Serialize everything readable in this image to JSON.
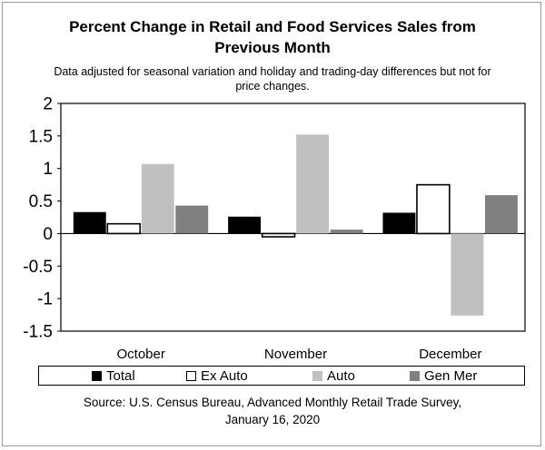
{
  "title_line1": "Percent Change in Retail and Food Services Sales from",
  "title_line2": "Previous Month",
  "subtitle_line1": "Data adjusted for seasonal variation and holiday and trading-day differences but not for",
  "subtitle_line2": "price changes.",
  "source_line1": "Source: U.S. Census Bureau, Advanced Monthly Retail Trade Survey,",
  "source_line2": "January 16, 2020",
  "chart_data": {
    "type": "bar",
    "categories": [
      "October",
      "November",
      "December"
    ],
    "series": [
      {
        "name": "Total",
        "values": [
          0.33,
          0.26,
          0.32
        ],
        "color": "#000000"
      },
      {
        "name": "Ex Auto",
        "values": [
          0.15,
          -0.05,
          0.75
        ],
        "color": "#ffffff"
      },
      {
        "name": "Auto",
        "values": [
          1.07,
          1.52,
          -1.26
        ],
        "color": "#c0c0c0"
      },
      {
        "name": "Gen Mer",
        "values": [
          0.43,
          0.06,
          0.59
        ],
        "color": "#808080"
      }
    ],
    "ylim": [
      -1.5,
      2
    ],
    "yticks": [
      2,
      1.5,
      1,
      0.5,
      0,
      -0.5,
      -1,
      -1.5
    ],
    "ytick_labels": [
      "2",
      "1.5",
      "1",
      "0.5",
      "0",
      "-0.5",
      "-1",
      "-1.5"
    ],
    "grid": false,
    "legend_position": "bottom"
  }
}
